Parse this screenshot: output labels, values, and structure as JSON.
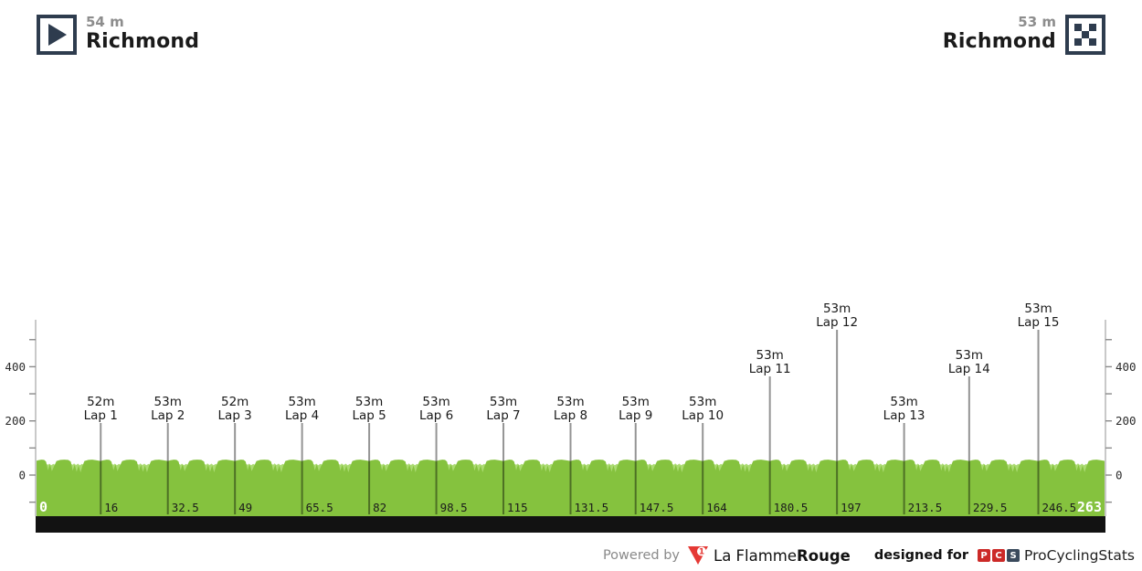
{
  "header": {
    "start": {
      "elevation": "54 m",
      "name": "Richmond"
    },
    "finish": {
      "elevation": "53 m",
      "name": "Richmond"
    }
  },
  "footer": {
    "powered_by": "Powered by",
    "lfr_name_regular": "La Flamme",
    "lfr_name_bold": "Rouge",
    "lfr_logo_digit": "1",
    "designed_for": "designed for",
    "pcs_letters": [
      "P",
      "C",
      "S"
    ],
    "pcs_name": "ProCyclingStats"
  },
  "chart_data": {
    "type": "area",
    "title": "",
    "x_unit": "km",
    "y_unit": "m",
    "x_range": [
      0,
      263
    ],
    "x_ticks": [
      0,
      16,
      32.5,
      49,
      65.5,
      82,
      98.5,
      115,
      131.5,
      147.5,
      164,
      180.5,
      197,
      213.5,
      229.5,
      246.5,
      263
    ],
    "y_axis": {
      "labeled_ticks": [
        0,
        200,
        400
      ],
      "minor_tick_step_m": 100,
      "tick_min_m": -100,
      "tick_max_m": 500
    },
    "start": {
      "km": 0,
      "elevation_m": 54,
      "name": "Richmond",
      "axis_label": "0"
    },
    "finish": {
      "km": 263,
      "elevation_m": 53,
      "name": "Richmond",
      "axis_label": "263"
    },
    "laps": [
      {
        "label": "Lap 1",
        "elevation": "52m",
        "km": 16,
        "label_tier": 1
      },
      {
        "label": "Lap 2",
        "elevation": "53m",
        "km": 32.5,
        "label_tier": 1
      },
      {
        "label": "Lap 3",
        "elevation": "52m",
        "km": 49,
        "label_tier": 1
      },
      {
        "label": "Lap 4",
        "elevation": "53m",
        "km": 65.5,
        "label_tier": 1
      },
      {
        "label": "Lap 5",
        "elevation": "53m",
        "km": 82,
        "label_tier": 1
      },
      {
        "label": "Lap 6",
        "elevation": "53m",
        "km": 98.5,
        "label_tier": 1
      },
      {
        "label": "Lap 7",
        "elevation": "53m",
        "km": 115,
        "label_tier": 1
      },
      {
        "label": "Lap 8",
        "elevation": "53m",
        "km": 131.5,
        "label_tier": 1
      },
      {
        "label": "Lap 9",
        "elevation": "53m",
        "km": 147.5,
        "label_tier": 1
      },
      {
        "label": "Lap 10",
        "elevation": "53m",
        "km": 164,
        "label_tier": 1
      },
      {
        "label": "Lap 11",
        "elevation": "53m",
        "km": 180.5,
        "label_tier": 2
      },
      {
        "label": "Lap 12",
        "elevation": "53m",
        "km": 197,
        "label_tier": 3
      },
      {
        "label": "Lap 13",
        "elevation": "53m",
        "km": 213.5,
        "label_tier": 1
      },
      {
        "label": "Lap 14",
        "elevation": "53m",
        "km": 229.5,
        "label_tier": 2
      },
      {
        "label": "Lap 15",
        "elevation": "53m",
        "km": 246.5,
        "label_tier": 3
      }
    ],
    "profile": {
      "note": "circuit race; same lap pattern repeats between consecutive x_ticks, elevations in meters",
      "lap_fg_points": [
        [
          0,
          52
        ],
        [
          0.04,
          55
        ],
        [
          0.09,
          57
        ],
        [
          0.13,
          56
        ],
        [
          0.16,
          50
        ],
        [
          0.19,
          18
        ],
        [
          0.22,
          40
        ],
        [
          0.25,
          14
        ],
        [
          0.29,
          36
        ],
        [
          0.32,
          52
        ],
        [
          0.38,
          56
        ],
        [
          0.44,
          57
        ],
        [
          0.5,
          56
        ],
        [
          0.54,
          50
        ],
        [
          0.57,
          16
        ],
        [
          0.6,
          38
        ],
        [
          0.63,
          12
        ],
        [
          0.66,
          35
        ],
        [
          0.69,
          10
        ],
        [
          0.72,
          34
        ],
        [
          0.75,
          52
        ],
        [
          0.81,
          56
        ],
        [
          0.87,
          57
        ],
        [
          0.93,
          55
        ],
        [
          1,
          52
        ]
      ],
      "lap_bg_points": [
        [
          0,
          46
        ],
        [
          0.06,
          48
        ],
        [
          0.12,
          46
        ],
        [
          0.16,
          42
        ],
        [
          0.19,
          38
        ],
        [
          0.21,
          42
        ],
        [
          0.24,
          36
        ],
        [
          0.27,
          41
        ],
        [
          0.3,
          38
        ],
        [
          0.34,
          44
        ],
        [
          0.42,
          47
        ],
        [
          0.5,
          45
        ],
        [
          0.54,
          42
        ],
        [
          0.57,
          38
        ],
        [
          0.59,
          43
        ],
        [
          0.62,
          37
        ],
        [
          0.65,
          42
        ],
        [
          0.68,
          36
        ],
        [
          0.71,
          41
        ],
        [
          0.74,
          38
        ],
        [
          0.78,
          45
        ],
        [
          0.85,
          48
        ],
        [
          0.93,
          47
        ],
        [
          1,
          46
        ]
      ]
    },
    "colors": {
      "profile_dark_green": "#85C23E",
      "profile_light_green": "#ABDB72",
      "axis_line": "#c9c9c9",
      "tick": "#8a8a8a",
      "axis_label": "#2b2b2b",
      "lap_line": "#000000",
      "lap_label": "#1a1a1a",
      "bottom_bar": "#121212",
      "x_label_dark": "#1c1c1c",
      "x_label_endpoints": "#ffffff"
    }
  },
  "brand_colors": {
    "flag_navy": "#2e3c4e",
    "lfr_red": "#e53935",
    "pcs_red": "#cc2a28",
    "pcs_navy": "#3a4a5c"
  }
}
